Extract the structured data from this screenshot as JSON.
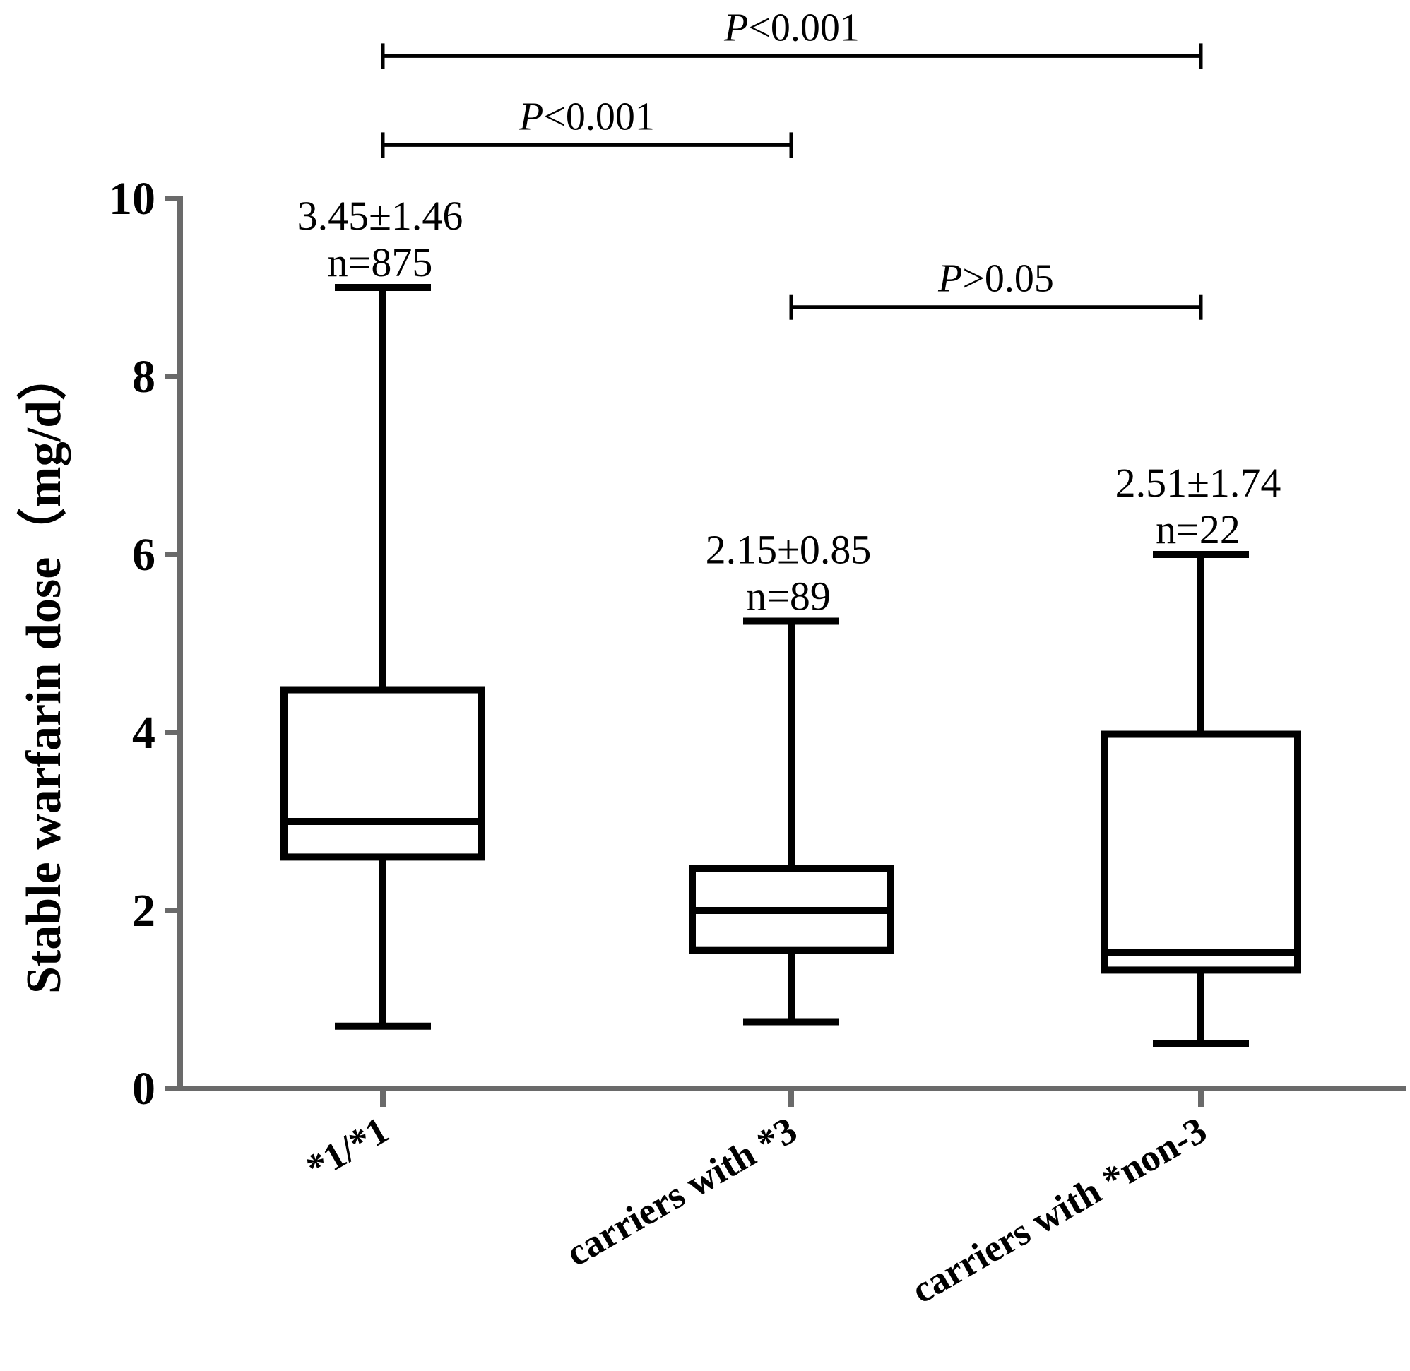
{
  "chart_data": {
    "type": "box",
    "title": "",
    "xlabel": "",
    "ylabel": "Stable warfarin dose（mg/d）",
    "ylim": [
      0,
      10
    ],
    "yticks": [
      "0",
      "2",
      "4",
      "6",
      "8",
      "10"
    ],
    "grid": false,
    "categories": [
      "*1/*1",
      "carriers with *3",
      "carriers with *non-3"
    ],
    "boxes": [
      {
        "min": 0.7,
        "q1": 2.6,
        "median": 3.0,
        "q3": 4.48,
        "max": 9.0,
        "mean_sd": "3.45±1.46",
        "n": "n=875"
      },
      {
        "min": 0.75,
        "q1": 1.55,
        "median": 2.0,
        "q3": 2.47,
        "max": 5.25,
        "mean_sd": "2.15±0.85",
        "n": "n=89"
      },
      {
        "min": 0.5,
        "q1": 1.33,
        "median": 1.53,
        "q3": 3.98,
        "max": 6.0,
        "mean_sd": "2.51±1.74",
        "n": "n=22"
      }
    ],
    "comparisons": [
      {
        "from": 0,
        "to": 2,
        "level": 11.6,
        "p_symbol": "P",
        "p_rest": "<0.001"
      },
      {
        "from": 0,
        "to": 1,
        "level": 10.6,
        "p_symbol": "P",
        "p_rest": "<0.001"
      },
      {
        "from": 1,
        "to": 2,
        "level": 8.78,
        "p_symbol": "P",
        "p_rest": ">0.05"
      }
    ],
    "colors": {
      "axis": "#6a6a6a",
      "box": "#000000"
    }
  }
}
